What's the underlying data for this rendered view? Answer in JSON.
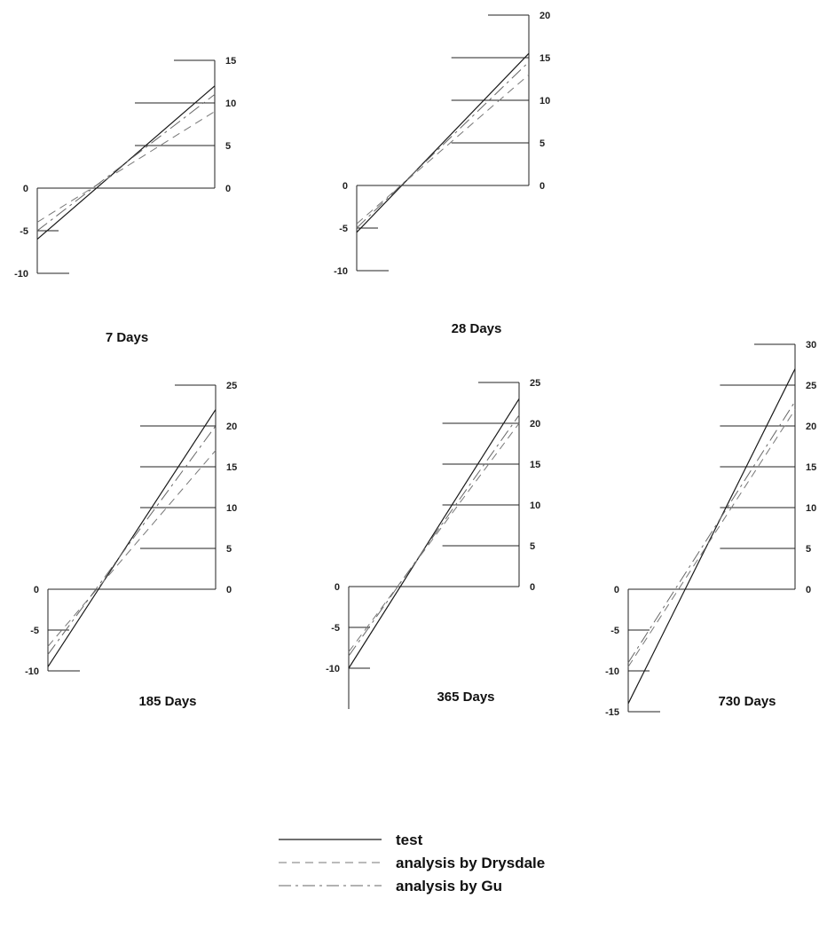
{
  "chart_data": [
    {
      "type": "line",
      "title": "7 Days",
      "left_axis": {
        "ylim": [
          -10,
          0
        ],
        "ticks": [
          0,
          -5,
          -10
        ]
      },
      "right_axis": {
        "ylim": [
          0,
          15
        ],
        "ticks": [
          15,
          10,
          5,
          0
        ]
      },
      "series": [
        {
          "key": "test",
          "y": [
            -6,
            12
          ]
        },
        {
          "key": "drysdale",
          "y": [
            -4,
            9
          ]
        },
        {
          "key": "gu",
          "y": [
            -5,
            11
          ]
        }
      ]
    },
    {
      "type": "line",
      "title": "28 Days",
      "left_axis": {
        "ylim": [
          -10,
          0
        ],
        "ticks": [
          0,
          -5,
          -10
        ]
      },
      "right_axis": {
        "ylim": [
          0,
          20
        ],
        "ticks": [
          20,
          15,
          10,
          5,
          0
        ]
      },
      "series": [
        {
          "key": "test",
          "y": [
            -5.5,
            15.5
          ]
        },
        {
          "key": "drysdale",
          "y": [
            -4.5,
            13
          ]
        },
        {
          "key": "gu",
          "y": [
            -5,
            14.5
          ]
        }
      ]
    },
    {
      "type": "line",
      "title": "185 Days",
      "left_axis": {
        "ylim": [
          -10,
          0
        ],
        "ticks": [
          0,
          -5,
          -10
        ]
      },
      "right_axis": {
        "ylim": [
          0,
          25
        ],
        "ticks": [
          25,
          20,
          15,
          10,
          5,
          0
        ]
      },
      "series": [
        {
          "key": "test",
          "y": [
            -9.5,
            22
          ]
        },
        {
          "key": "drysdale",
          "y": [
            -7,
            17
          ]
        },
        {
          "key": "gu",
          "y": [
            -8,
            20
          ]
        }
      ]
    },
    {
      "type": "line",
      "title": "365 Days",
      "left_axis": {
        "ylim": [
          -15,
          0
        ],
        "ticks": [
          0,
          -5,
          -10
        ]
      },
      "right_axis": {
        "ylim": [
          0,
          25
        ],
        "ticks": [
          25,
          20,
          15,
          10,
          5,
          0
        ]
      },
      "series": [
        {
          "key": "test",
          "y": [
            -10,
            23
          ]
        },
        {
          "key": "drysdale",
          "y": [
            -8,
            20
          ]
        },
        {
          "key": "gu",
          "y": [
            -8.5,
            21
          ]
        }
      ]
    },
    {
      "type": "line",
      "title": "730 Days",
      "left_axis": {
        "ylim": [
          -15,
          0
        ],
        "ticks": [
          0,
          -5,
          -10,
          -15
        ]
      },
      "right_axis": {
        "ylim": [
          0,
          30
        ],
        "ticks": [
          30,
          25,
          20,
          15,
          10,
          5,
          0
        ]
      },
      "series": [
        {
          "key": "test",
          "y": [
            -14,
            27
          ]
        },
        {
          "key": "drysdale",
          "y": [
            -9.5,
            22
          ]
        },
        {
          "key": "gu",
          "y": [
            -9,
            23
          ]
        }
      ]
    }
  ],
  "legend": [
    {
      "key": "test",
      "label": "test",
      "dash": "solid"
    },
    {
      "key": "drysdale",
      "label": "analysis by Drysdale",
      "dash": "dashed"
    },
    {
      "key": "gu",
      "label": "analysis by Gu",
      "dash": "dash-dot"
    }
  ]
}
